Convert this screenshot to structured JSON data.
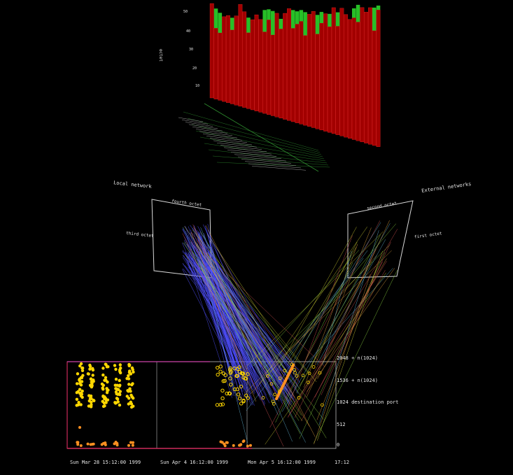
{
  "bar_panel": {
    "axis_label": "octet",
    "axis_ticks": [
      "50",
      "40",
      "30",
      "20",
      "10"
    ],
    "colors": {
      "lower": "#e00000",
      "upper": "#2ee02e",
      "floor_grid": "#2f8f2f"
    }
  },
  "network_panel": {
    "labels": {
      "local_network": "Local network",
      "external_networks": "External networks",
      "fourth_octet": "fourth octet",
      "third_octet": "third octet",
      "second_octet": "second octet",
      "first_octet": "first octet"
    },
    "port_axis": {
      "ticks": [
        "2048 + n(1024)",
        "1536 + n(1024)",
        "1024  destination port",
        "512",
        "0"
      ]
    },
    "time_axis": {
      "ticks": [
        "Sun Mar 28 15:12:00 1999",
        "Sun Apr  4 16:12:00 1999",
        "Mon Apr  5 16:12:00 1999",
        "17:12"
      ]
    },
    "colors": {
      "frame": "#cfcfcf",
      "internal_lines": "#5050ff",
      "external_lines": "#c8c830",
      "points": "#ffd700",
      "baseline": "#cc2a5a"
    }
  }
}
